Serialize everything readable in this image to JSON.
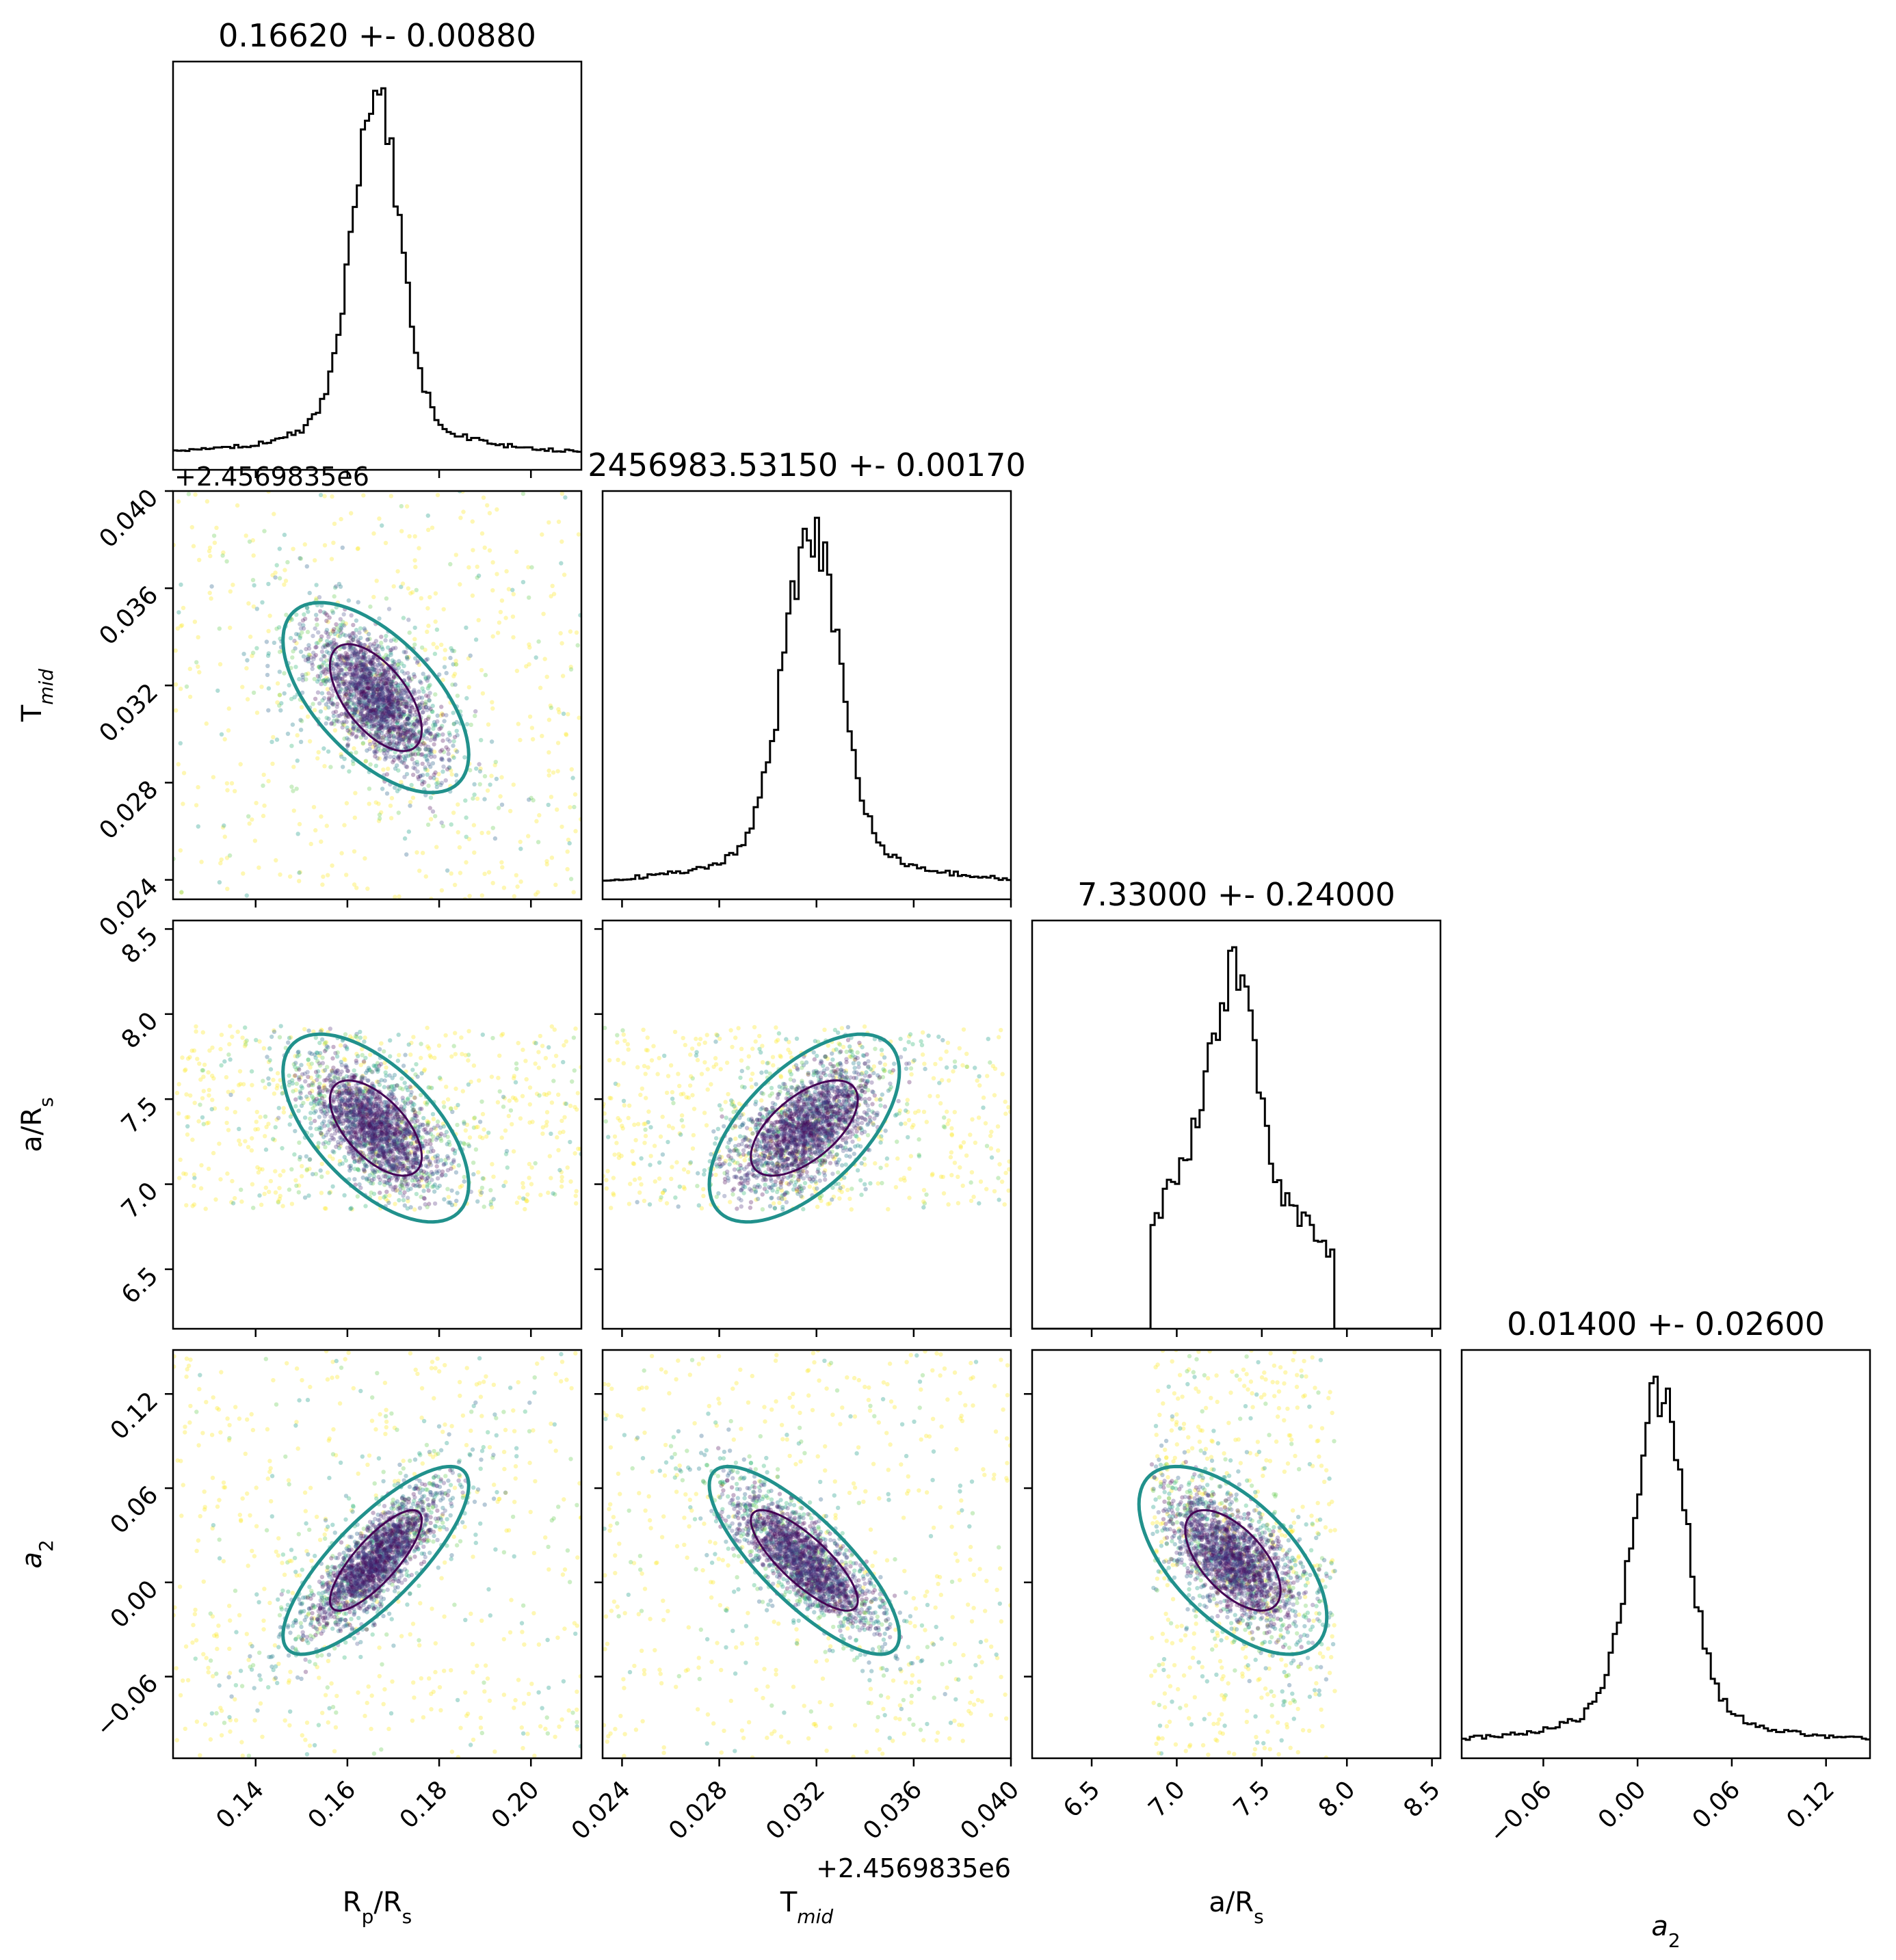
{
  "chart_data": {
    "type": "corner",
    "parameters": [
      "R_p/R_s",
      "T_mid",
      "a/R_s",
      "a_2"
    ],
    "axis_labels": [
      {
        "main": "R",
        "sub": "p",
        "tail": "/R",
        "sub2": "s",
        "text": "Rp/Rs"
      },
      {
        "main": "T",
        "sub": "mid",
        "tail": "",
        "sub2": "",
        "text": "Tmid"
      },
      {
        "main": "a/R",
        "sub": "s",
        "tail": "",
        "sub2": "",
        "text": "a/Rs"
      },
      {
        "main": "a",
        "sub": "2",
        "tail": "",
        "sub2": "",
        "text": "a2",
        "italic": true
      }
    ],
    "titles": [
      "0.16620 +- 0.00880",
      "2456983.53150 +- 0.00170",
      "7.33000 +- 0.24000",
      "0.01400 +- 0.02600"
    ],
    "offset_text": "+2.4569835e6",
    "ranges": [
      [
        0.122,
        0.211
      ],
      [
        0.0232,
        0.04
      ],
      [
        6.15,
        8.55
      ],
      [
        -0.112,
        0.148
      ]
    ],
    "ticks": [
      {
        "values": [
          0.14,
          0.16,
          0.18,
          0.2
        ],
        "labels": [
          "0.14",
          "0.16",
          "0.18",
          "0.20"
        ]
      },
      {
        "values": [
          0.024,
          0.028,
          0.032,
          0.036,
          0.04
        ],
        "labels": [
          "0.024",
          "0.028",
          "0.032",
          "0.036",
          "0.040"
        ]
      },
      {
        "values": [
          6.5,
          7.0,
          7.5,
          8.0,
          8.5
        ],
        "labels": [
          "6.5",
          "7.0",
          "7.5",
          "8.0",
          "8.5"
        ]
      },
      {
        "values": [
          -0.06,
          0.0,
          0.06,
          0.12
        ],
        "labels": [
          "−0.06",
          "0.00",
          "0.06",
          "0.12"
        ]
      }
    ],
    "estimates": {
      "means": [
        0.1662,
        0.0315,
        7.33,
        0.014
      ],
      "sigmas": [
        0.0088,
        0.0017,
        0.24,
        0.026
      ],
      "core_sigmas": [
        0.005,
        0.0011,
        0.14,
        0.016
      ],
      "correlations": {
        "0-1": -0.6,
        "0-2": -0.6,
        "0-3": 0.8,
        "1-2": 0.6,
        "1-3": -0.8,
        "2-3": -0.6
      },
      "aRs_bounds": [
        6.85,
        7.93
      ]
    },
    "histograms": [
      {
        "peak_x": 0.1662,
        "shape": "sharp peak with broad wings"
      },
      {
        "peak_x": 0.0318,
        "shape": "sharp peak with broad wings"
      },
      {
        "peak_x": 7.33,
        "shape": "truncated between 6.85 and 7.93, shoulders near 7.0 and 7.7"
      },
      {
        "peak_x": 0.014,
        "shape": "sharp peak with broad wings"
      }
    ],
    "contour_colors": {
      "inner": "#440154",
      "middle": "#21918c",
      "outer": "#fde725"
    },
    "scatter_colormap": "viridis",
    "grid": false,
    "legend": "none"
  }
}
